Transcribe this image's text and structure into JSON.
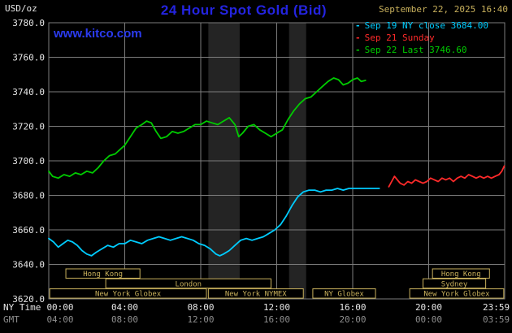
{
  "colors": {
    "background": "#000000",
    "title_blue": "#2424e0",
    "watermark_blue": "#2b3bf0",
    "tan": "#c8b05c",
    "axis_text": "#e6e6e6",
    "gmt_text": "#8f8f8f",
    "grid": "#7d7d7d",
    "band": "#242424",
    "session": "#c8b05c",
    "cyan": "#00ccff",
    "red": "#ff2a2a",
    "green": "#00cc00"
  },
  "header": {
    "units": "USD/oz",
    "title": "24 Hour Spot Gold (Bid)",
    "datetime": "September 22, 2025 16:40",
    "watermark": "www.kitco.com"
  },
  "legend": [
    {
      "label": "Sep 19 NY close 3684.00",
      "color": "#00ccff"
    },
    {
      "label": "Sep 21 Sunday",
      "color": "#ff2a2a"
    },
    {
      "label": "Sep 22 Last 3746.60",
      "color": "#00cc00"
    }
  ],
  "chart_data": {
    "type": "line",
    "title": "24 Hour Spot Gold (Bid)",
    "ylabel": "USD/oz",
    "ylim": [
      3620,
      3780
    ],
    "yticks": [
      3620,
      3640,
      3660,
      3680,
      3700,
      3720,
      3740,
      3760,
      3780
    ],
    "grid": true,
    "legend_position": "top-right",
    "x_axis": {
      "ny_label": "NY Time",
      "gmt_label": "GMT",
      "ticks": [
        {
          "hour": 0,
          "ny": "00:00",
          "gmt": "04:00"
        },
        {
          "hour": 4,
          "ny": "04:00",
          "gmt": "08:00"
        },
        {
          "hour": 8,
          "ny": "08:00",
          "gmt": "12:00"
        },
        {
          "hour": 12,
          "ny": "12:00",
          "gmt": "16:00"
        },
        {
          "hour": 16,
          "ny": "16:00",
          "gmt": "20:00"
        },
        {
          "hour": 20,
          "ny": "20:00",
          "gmt": "00:00"
        },
        {
          "hour": 23.983,
          "ny": "23:59",
          "gmt": "03:59"
        }
      ]
    },
    "shaded_bands": [
      [
        8.4,
        10.05
      ],
      [
        12.65,
        13.55
      ]
    ],
    "series": [
      {
        "name": "Sep 19 NY close",
        "color": "#00ccff",
        "close": 3684.0,
        "points": [
          [
            0,
            3655
          ],
          [
            0.25,
            3653
          ],
          [
            0.5,
            3650
          ],
          [
            0.75,
            3652
          ],
          [
            1.0,
            3654
          ],
          [
            1.25,
            3653
          ],
          [
            1.5,
            3651
          ],
          [
            1.75,
            3648
          ],
          [
            2.0,
            3646
          ],
          [
            2.25,
            3645
          ],
          [
            2.5,
            3647
          ],
          [
            2.8,
            3649
          ],
          [
            3.1,
            3651
          ],
          [
            3.4,
            3650
          ],
          [
            3.7,
            3652
          ],
          [
            4.0,
            3652
          ],
          [
            4.3,
            3654
          ],
          [
            4.6,
            3653
          ],
          [
            4.9,
            3652
          ],
          [
            5.2,
            3654
          ],
          [
            5.5,
            3655
          ],
          [
            5.8,
            3656
          ],
          [
            6.1,
            3655
          ],
          [
            6.4,
            3654
          ],
          [
            6.7,
            3655
          ],
          [
            7.0,
            3656
          ],
          [
            7.3,
            3655
          ],
          [
            7.6,
            3654
          ],
          [
            7.9,
            3652
          ],
          [
            8.2,
            3651
          ],
          [
            8.5,
            3649
          ],
          [
            8.8,
            3646
          ],
          [
            9.0,
            3645
          ],
          [
            9.2,
            3646
          ],
          [
            9.5,
            3648
          ],
          [
            9.8,
            3651
          ],
          [
            10.1,
            3654
          ],
          [
            10.4,
            3655
          ],
          [
            10.7,
            3654
          ],
          [
            11.0,
            3655
          ],
          [
            11.3,
            3656
          ],
          [
            11.6,
            3658
          ],
          [
            11.9,
            3660
          ],
          [
            12.2,
            3663
          ],
          [
            12.5,
            3668
          ],
          [
            12.8,
            3674
          ],
          [
            13.1,
            3679
          ],
          [
            13.4,
            3682
          ],
          [
            13.7,
            3683
          ],
          [
            14.0,
            3683
          ],
          [
            14.3,
            3682
          ],
          [
            14.6,
            3683
          ],
          [
            14.9,
            3683
          ],
          [
            15.2,
            3684
          ],
          [
            15.5,
            3683
          ],
          [
            15.8,
            3684
          ],
          [
            16.1,
            3684
          ],
          [
            16.5,
            3684
          ],
          [
            17.0,
            3684
          ],
          [
            17.4,
            3684
          ]
        ]
      },
      {
        "name": "Sep 21 Sunday",
        "color": "#ff2a2a",
        "points": [
          [
            17.9,
            3685
          ],
          [
            18.05,
            3688
          ],
          [
            18.2,
            3691
          ],
          [
            18.35,
            3689
          ],
          [
            18.5,
            3687
          ],
          [
            18.7,
            3686
          ],
          [
            18.9,
            3688
          ],
          [
            19.1,
            3687
          ],
          [
            19.3,
            3689
          ],
          [
            19.5,
            3688
          ],
          [
            19.7,
            3687
          ],
          [
            19.9,
            3688
          ],
          [
            20.1,
            3690
          ],
          [
            20.3,
            3689
          ],
          [
            20.5,
            3688
          ],
          [
            20.7,
            3690
          ],
          [
            20.9,
            3689
          ],
          [
            21.1,
            3690
          ],
          [
            21.3,
            3688
          ],
          [
            21.5,
            3690
          ],
          [
            21.7,
            3691
          ],
          [
            21.9,
            3690
          ],
          [
            22.1,
            3692
          ],
          [
            22.3,
            3691
          ],
          [
            22.5,
            3690
          ],
          [
            22.7,
            3691
          ],
          [
            22.9,
            3690
          ],
          [
            23.1,
            3691
          ],
          [
            23.3,
            3690
          ],
          [
            23.5,
            3691
          ],
          [
            23.7,
            3692
          ],
          [
            23.85,
            3694
          ],
          [
            23.98,
            3697
          ]
        ]
      },
      {
        "name": "Sep 22 Last",
        "color": "#00cc00",
        "last": 3746.6,
        "points": [
          [
            0,
            3694
          ],
          [
            0.2,
            3691
          ],
          [
            0.5,
            3690
          ],
          [
            0.8,
            3692
          ],
          [
            1.1,
            3691
          ],
          [
            1.4,
            3693
          ],
          [
            1.7,
            3692
          ],
          [
            2.0,
            3694
          ],
          [
            2.3,
            3693
          ],
          [
            2.6,
            3696
          ],
          [
            2.9,
            3700
          ],
          [
            3.2,
            3703
          ],
          [
            3.5,
            3704
          ],
          [
            3.8,
            3707
          ],
          [
            4.0,
            3709
          ],
          [
            4.3,
            3714
          ],
          [
            4.6,
            3719
          ],
          [
            4.9,
            3721
          ],
          [
            5.15,
            3723
          ],
          [
            5.4,
            3722
          ],
          [
            5.65,
            3717
          ],
          [
            5.9,
            3713
          ],
          [
            6.2,
            3714
          ],
          [
            6.5,
            3717
          ],
          [
            6.8,
            3716
          ],
          [
            7.1,
            3717
          ],
          [
            7.4,
            3719
          ],
          [
            7.7,
            3721
          ],
          [
            8.0,
            3721
          ],
          [
            8.3,
            3723
          ],
          [
            8.6,
            3722
          ],
          [
            8.9,
            3721
          ],
          [
            9.2,
            3723
          ],
          [
            9.5,
            3725
          ],
          [
            9.8,
            3721
          ],
          [
            10.0,
            3714
          ],
          [
            10.2,
            3716
          ],
          [
            10.5,
            3720
          ],
          [
            10.8,
            3721
          ],
          [
            11.1,
            3718
          ],
          [
            11.4,
            3716
          ],
          [
            11.7,
            3714
          ],
          [
            12.0,
            3716
          ],
          [
            12.3,
            3718
          ],
          [
            12.6,
            3724
          ],
          [
            12.9,
            3729
          ],
          [
            13.2,
            3733
          ],
          [
            13.5,
            3736
          ],
          [
            13.8,
            3737
          ],
          [
            14.1,
            3740
          ],
          [
            14.4,
            3743
          ],
          [
            14.7,
            3746
          ],
          [
            15.0,
            3748
          ],
          [
            15.25,
            3747
          ],
          [
            15.5,
            3744
          ],
          [
            15.75,
            3745
          ],
          [
            16.0,
            3747
          ],
          [
            16.25,
            3748
          ],
          [
            16.45,
            3746
          ],
          [
            16.67,
            3746.6
          ]
        ]
      }
    ],
    "sessions": [
      {
        "label": "Hong Kong",
        "row": 0,
        "start": 0.9,
        "end": 4.8
      },
      {
        "label": "Hong Kong",
        "row": 0,
        "start": 20.2,
        "end": 23.2
      },
      {
        "label": "London",
        "row": 1,
        "start": 3.0,
        "end": 11.7
      },
      {
        "label": "Sydney",
        "row": 1,
        "start": 19.7,
        "end": 23.0
      },
      {
        "label": "New York Globex",
        "row": 2,
        "start": 0.05,
        "end": 8.3
      },
      {
        "label": "New York NYMEX",
        "row": 2,
        "start": 8.4,
        "end": 13.4
      },
      {
        "label": "NY Globex",
        "row": 2,
        "start": 13.9,
        "end": 17.2
      },
      {
        "label": "New York Globex",
        "row": 2,
        "start": 19.0,
        "end": 23.95
      }
    ]
  }
}
